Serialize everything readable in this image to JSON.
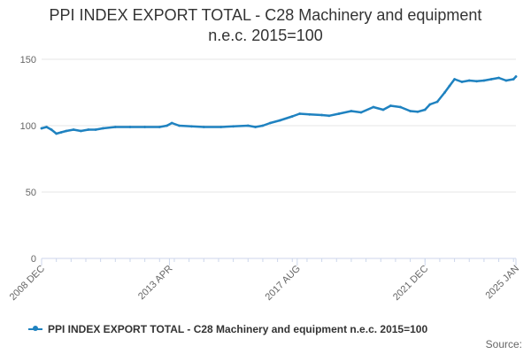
{
  "chart_data": {
    "type": "line",
    "title_line1": "PPI INDEX EXPORT TOTAL - C28 Machinery and equipment",
    "title_line2": "n.e.c. 2015=100",
    "xlabel": "",
    "ylabel": "",
    "ylim": [
      0,
      150
    ],
    "yticks": [
      0,
      50,
      100,
      150
    ],
    "x_range": [
      "2008-12",
      "2025-01"
    ],
    "xticks": [
      {
        "date": "2008-12",
        "label": "2008 DEC"
      },
      {
        "date": "2013-04",
        "label": "2013 APR"
      },
      {
        "date": "2017-08",
        "label": "2017 AUG"
      },
      {
        "date": "2021-12",
        "label": "2021 DEC"
      },
      {
        "date": "2025-01",
        "label": "2025 JAN"
      }
    ],
    "grid": "horizontal",
    "legend_position": "bottom",
    "series": [
      {
        "name": "PPI INDEX EXPORT TOTAL - C28 Machinery and equipment n.e.c. 2015=100",
        "color": "#1f82c0",
        "points": [
          [
            "2008-12",
            98
          ],
          [
            "2009-02",
            99
          ],
          [
            "2009-04",
            97
          ],
          [
            "2009-06",
            94
          ],
          [
            "2009-08",
            95
          ],
          [
            "2009-10",
            96
          ],
          [
            "2010-01",
            97
          ],
          [
            "2010-04",
            96
          ],
          [
            "2010-07",
            97
          ],
          [
            "2010-10",
            97
          ],
          [
            "2011-01",
            98
          ],
          [
            "2011-06",
            99
          ],
          [
            "2011-12",
            99
          ],
          [
            "2012-06",
            99
          ],
          [
            "2012-12",
            99
          ],
          [
            "2013-03",
            100
          ],
          [
            "2013-05",
            102
          ],
          [
            "2013-08",
            100
          ],
          [
            "2014-01",
            99.5
          ],
          [
            "2014-06",
            99
          ],
          [
            "2015-01",
            99
          ],
          [
            "2015-06",
            99.5
          ],
          [
            "2015-12",
            100
          ],
          [
            "2016-03",
            99
          ],
          [
            "2016-06",
            100
          ],
          [
            "2016-09",
            102
          ],
          [
            "2017-01",
            104
          ],
          [
            "2017-06",
            107
          ],
          [
            "2017-09",
            109
          ],
          [
            "2018-01",
            108.5
          ],
          [
            "2018-06",
            108
          ],
          [
            "2018-09",
            107.5
          ],
          [
            "2019-01",
            109
          ],
          [
            "2019-06",
            111
          ],
          [
            "2019-10",
            110
          ],
          [
            "2020-03",
            114
          ],
          [
            "2020-07",
            112
          ],
          [
            "2020-10",
            115
          ],
          [
            "2021-02",
            114
          ],
          [
            "2021-06",
            111
          ],
          [
            "2021-09",
            110.5
          ],
          [
            "2021-12",
            112
          ],
          [
            "2022-02",
            116
          ],
          [
            "2022-05",
            118
          ],
          [
            "2022-08",
            125
          ],
          [
            "2022-10",
            130
          ],
          [
            "2022-12",
            135
          ],
          [
            "2023-03",
            133
          ],
          [
            "2023-06",
            134
          ],
          [
            "2023-09",
            133.5
          ],
          [
            "2023-12",
            134
          ],
          [
            "2024-03",
            135
          ],
          [
            "2024-06",
            136
          ],
          [
            "2024-09",
            134
          ],
          [
            "2024-12",
            135
          ],
          [
            "2025-01",
            137
          ]
        ]
      }
    ]
  },
  "source_label": "Source:"
}
